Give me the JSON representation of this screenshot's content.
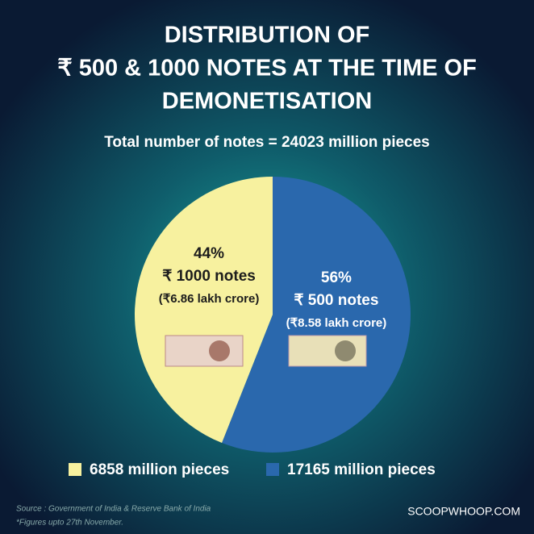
{
  "chart_data": {
    "type": "pie",
    "title": [
      "DISTRIBUTION  OF",
      "₹ 500 & 1000 NOTES AT THE TIME OF",
      "DEMONETISATION"
    ],
    "subtitle": "Total number of notes = 24023 million pieces",
    "categories": [
      "₹ 500 notes",
      "₹ 1000 notes"
    ],
    "values": [
      56,
      44
    ],
    "value_labels": [
      "56%",
      "44%"
    ],
    "amounts": [
      "(₹8.58 lakh crore)",
      "(₹6.86 lakh crore)"
    ],
    "colors": [
      "#2a68ad",
      "#f7f19f"
    ],
    "label_colors": [
      "#ffffff",
      "#1c1c1c"
    ],
    "legend": [
      "17165 million pieces",
      "6858 million pieces"
    ],
    "source": "Source : Government of India & Reserve Bank of India",
    "footnote": "*Figures upto 27th November.",
    "brand": "SCOOPWHOOP.COM"
  }
}
